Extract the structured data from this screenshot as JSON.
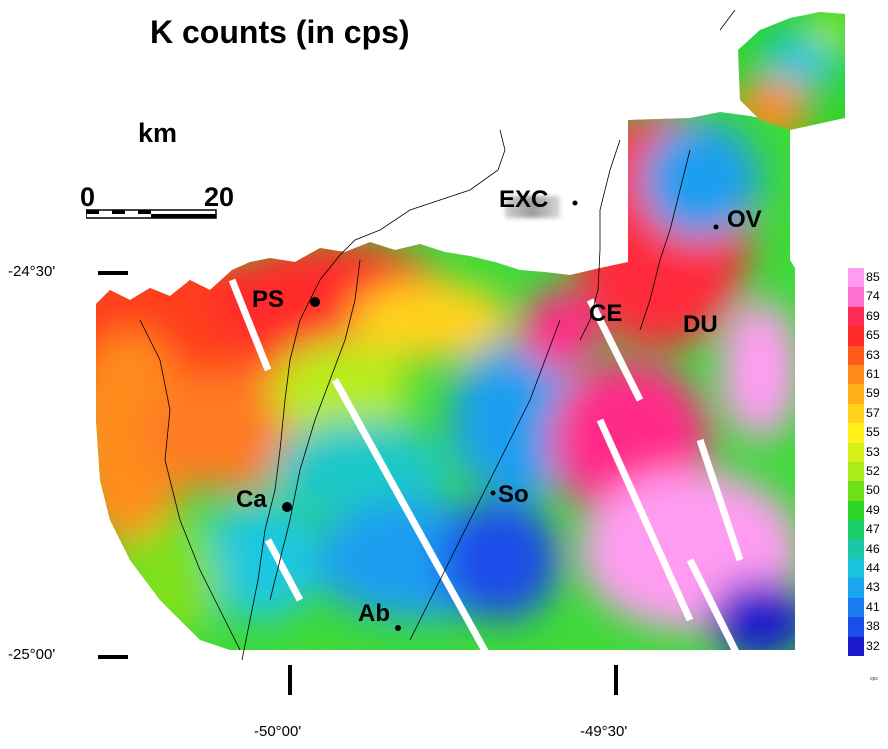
{
  "title": "K counts (in cps)",
  "scale": {
    "unit": "km",
    "start": "0",
    "end": "20"
  },
  "latitudes": [
    "-24°30'",
    "-25°00'"
  ],
  "longitudes": [
    "-50°00'",
    "-49°30'"
  ],
  "places": [
    {
      "id": "PS",
      "label": "PS"
    },
    {
      "id": "CE",
      "label": "CE"
    },
    {
      "id": "DU",
      "label": "DU"
    },
    {
      "id": "OV",
      "label": "OV"
    },
    {
      "id": "Ca",
      "label": "Ca"
    },
    {
      "id": "So",
      "label": "So"
    },
    {
      "id": "Ab",
      "label": "Ab"
    },
    {
      "id": "EXC",
      "label": "EXC"
    }
  ],
  "legend": {
    "values": [
      "85",
      "74",
      "69",
      "65",
      "63",
      "61",
      "59",
      "57",
      "55",
      "53",
      "52",
      "50",
      "49",
      "47",
      "46",
      "44",
      "43",
      "41",
      "38",
      "32"
    ],
    "colors": [
      "#ff9cf2",
      "#ff6fd0",
      "#ff2a55",
      "#ff2a2a",
      "#ff5a1a",
      "#ff8a1a",
      "#ffb01a",
      "#ffd21a",
      "#fff01a",
      "#d8f01a",
      "#a8ec1a",
      "#6ee01a",
      "#2ed62a",
      "#1acc6a",
      "#1ac8a8",
      "#1ac2e0",
      "#1aa6f0",
      "#1a7af0",
      "#1a4ee8",
      "#1a1acc"
    ],
    "unit": "cps"
  },
  "colors": {
    "sea": "#ffffff",
    "coast": "#000000"
  }
}
